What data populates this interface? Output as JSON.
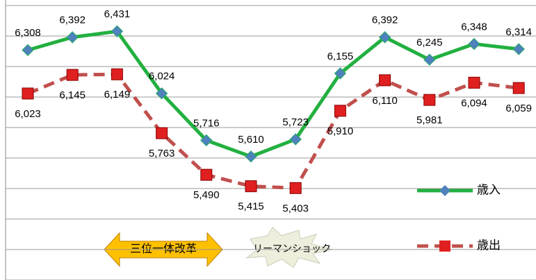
{
  "chart_data": {
    "type": "line",
    "categories": [
      null,
      null,
      null,
      null,
      null,
      null,
      null,
      null,
      null,
      null,
      null,
      null
    ],
    "series": [
      {
        "name": "歳入",
        "color": "#22b040",
        "marker_color": "#4f81bd",
        "values": [
          6308,
          6392,
          6431,
          6024,
          5716,
          5610,
          5723,
          6155,
          6392,
          6245,
          6348,
          6314
        ],
        "value_labels": [
          "6,308",
          "6,392",
          "6,431",
          "6,024",
          "5,716",
          "5,610",
          "5,723",
          "6,155",
          "6,392",
          "6,245",
          "6,348",
          "6,314"
        ]
      },
      {
        "name": "歳出",
        "color": "#c0504d",
        "marker_color": "#e02020",
        "dashed": true,
        "values": [
          6023,
          6145,
          6149,
          5763,
          5490,
          5415,
          5403,
          5910,
          6110,
          5981,
          6094,
          6059
        ],
        "value_labels": [
          "6,023",
          "6,145",
          "6,149",
          "5,763",
          "5,490",
          "5,415",
          "5,403",
          "5,910",
          "6,110",
          "5,981",
          "6,094",
          "6,059"
        ]
      }
    ],
    "ylim": [
      4800,
      6600
    ],
    "yticks": [
      4800,
      5000,
      5200,
      5400,
      5600,
      5800,
      6000,
      6200,
      6400,
      6600
    ],
    "grid": true,
    "legend": "right",
    "annotations": [
      "三位一体改革",
      "リーマンショック"
    ]
  }
}
